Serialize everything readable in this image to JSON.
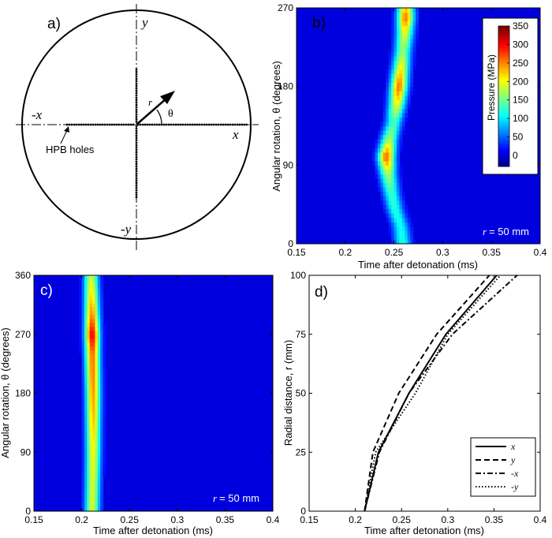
{
  "panels": {
    "a": {
      "label": "a)",
      "axis_labels": {
        "pos_x": "x",
        "neg_x": "-x",
        "pos_y": "y",
        "neg_y": "-y"
      },
      "vector_label": "r",
      "angle_label": "θ",
      "holes_label": "HPB holes"
    },
    "b": {
      "label": "b)",
      "r_annotation": "r = 50 mm",
      "r_symbol": "r",
      "r_value": "= 50 mm"
    },
    "c": {
      "label": "c)",
      "r_annotation": "r = 50 mm",
      "r_symbol": "r",
      "r_value": "= 50 mm"
    },
    "d": {
      "label": "d)"
    }
  },
  "colors": {
    "bg_blue": "#1f3cff",
    "jet": [
      "#00008f",
      "#0000ff",
      "#0080ff",
      "#00ffff",
      "#80ff80",
      "#ffff00",
      "#ff8000",
      "#ff0000",
      "#800000"
    ]
  },
  "chart_data": [
    {
      "type": "heatmap",
      "panel": "b",
      "xlabel": "Time after detonation (ms)",
      "ylabel": "Angular rotation, θ (degrees)",
      "xlim": [
        0.15,
        0.4
      ],
      "ylim": [
        0,
        270
      ],
      "xticks": [
        "0.15",
        "0.2",
        "0.25",
        "0.3",
        "0.35",
        "0.4"
      ],
      "xtick_values": [
        0.15,
        0.2,
        0.25,
        0.3,
        0.35,
        0.4
      ],
      "yticks": [
        "0",
        "90",
        "180",
        "270"
      ],
      "ytick_values": [
        0,
        90,
        180,
        270
      ],
      "colorbar": {
        "label": "Pressure (MPa)",
        "range": [
          -30,
          350
        ],
        "ticks": [
          "0",
          "50",
          "100",
          "150",
          "200",
          "250",
          "300",
          "350"
        ],
        "tick_values": [
          0,
          50,
          100,
          150,
          200,
          250,
          300,
          350
        ],
        "location": "upper-right"
      },
      "front_time_ms": [
        [
          0,
          0.259
        ],
        [
          20,
          0.257
        ],
        [
          40,
          0.251
        ],
        [
          60,
          0.247
        ],
        [
          80,
          0.244
        ],
        [
          100,
          0.242
        ],
        [
          120,
          0.245
        ],
        [
          140,
          0.25
        ],
        [
          160,
          0.253
        ],
        [
          180,
          0.255
        ],
        [
          200,
          0.257
        ],
        [
          220,
          0.259
        ],
        [
          240,
          0.261
        ],
        [
          260,
          0.262
        ],
        [
          270,
          0.262
        ]
      ],
      "peak_pressure_mpa": [
        [
          0,
          120
        ],
        [
          20,
          110
        ],
        [
          40,
          120
        ],
        [
          60,
          130
        ],
        [
          80,
          170
        ],
        [
          100,
          270
        ],
        [
          120,
          170
        ],
        [
          140,
          130
        ],
        [
          160,
          200
        ],
        [
          180,
          260
        ],
        [
          200,
          210
        ],
        [
          220,
          160
        ],
        [
          240,
          190
        ],
        [
          260,
          260
        ],
        [
          270,
          220
        ]
      ],
      "background_pressure_mpa": 0
    },
    {
      "type": "heatmap",
      "panel": "c",
      "xlabel": "Time after detonation (ms)",
      "ylabel": "Angular rotation, θ (degrees)",
      "xlim": [
        0.15,
        0.4
      ],
      "ylim": [
        0,
        360
      ],
      "xticks": [
        "0.15",
        "0.2",
        "0.25",
        "0.3",
        "0.35",
        "0.4"
      ],
      "xtick_values": [
        0.15,
        0.2,
        0.25,
        0.3,
        0.35,
        0.4
      ],
      "yticks": [
        "0",
        "90",
        "180",
        "270",
        "360"
      ],
      "ytick_values": [
        0,
        90,
        180,
        270,
        360
      ],
      "front_time_ms": [
        [
          0,
          0.211
        ],
        [
          90,
          0.212
        ],
        [
          180,
          0.212
        ],
        [
          270,
          0.211
        ],
        [
          360,
          0.21
        ]
      ],
      "peak_pressure_mpa": [
        [
          0,
          190
        ],
        [
          40,
          190
        ],
        [
          80,
          200
        ],
        [
          120,
          215
        ],
        [
          160,
          235
        ],
        [
          200,
          250
        ],
        [
          240,
          260
        ],
        [
          270,
          310
        ],
        [
          300,
          250
        ],
        [
          330,
          215
        ],
        [
          360,
          185
        ]
      ],
      "background_pressure_mpa": 0
    },
    {
      "type": "line",
      "panel": "d",
      "xlabel": "Time after detonation (ms)",
      "ylabel": "Radial distance, r (mm)",
      "xlim": [
        0.15,
        0.4
      ],
      "ylim": [
        0,
        100
      ],
      "xticks": [
        "0.15",
        "0.2",
        "0.25",
        "0.3",
        "0.35",
        "0.4"
      ],
      "xtick_values": [
        0.15,
        0.2,
        0.25,
        0.3,
        0.35,
        0.4
      ],
      "yticks": [
        "0",
        "25",
        "50",
        "75",
        "100"
      ],
      "ytick_values": [
        0,
        25,
        50,
        75,
        100
      ],
      "legend": "lower-right",
      "series": [
        {
          "name": "x",
          "style": "solid",
          "x": [
            0.21,
            0.225,
            0.258,
            0.298,
            0.353
          ],
          "y": [
            0,
            25,
            50,
            75,
            100
          ]
        },
        {
          "name": "y",
          "style": "dashed",
          "x": [
            0.21,
            0.219,
            0.247,
            0.288,
            0.345
          ],
          "y": [
            0,
            25,
            50,
            75,
            100
          ]
        },
        {
          "name": "-x",
          "style": "dashdot",
          "x": [
            0.21,
            0.226,
            0.258,
            0.305,
            0.375
          ],
          "y": [
            0,
            25,
            50,
            75,
            100
          ]
        },
        {
          "name": "-y",
          "style": "dotted",
          "x": [
            0.21,
            0.222,
            0.265,
            0.3,
            0.357
          ],
          "y": [
            0,
            25,
            50,
            75,
            100
          ]
        }
      ]
    }
  ]
}
